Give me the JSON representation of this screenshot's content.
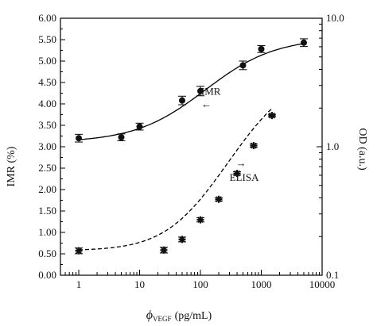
{
  "chart_data": {
    "type": "scatter",
    "xlabel": "ϕ",
    "xlabel_sub": "VEGF",
    "xlabel_unit": "(pg/mL)",
    "x_scale": "log",
    "xlim": [
      0.5,
      10000
    ],
    "x_ticks": [
      1,
      10,
      100,
      1000,
      10000
    ],
    "x_tick_labels": [
      "1",
      "10",
      "100",
      "1000",
      "10000"
    ],
    "ylabel_left": "IMR (%)",
    "ylim_left": [
      0,
      6
    ],
    "y_ticks_left": [
      "0.00",
      "0.50",
      "1.00",
      "1.50",
      "2.00",
      "2.50",
      "3.00",
      "3.50",
      "4.00",
      "4.50",
      "5.00",
      "5.50",
      "6.00"
    ],
    "ylabel_right": "OD (a.u.)",
    "y_scale_right": "log",
    "ylim_right": [
      0.1,
      10
    ],
    "y_ticks_right": [
      "0.1",
      "1.0",
      "10.0"
    ],
    "series": [
      {
        "name": "IMR",
        "axis": "left",
        "marker": "circle",
        "x": [
          1,
          5,
          10,
          50,
          100,
          500,
          1000,
          5000
        ],
        "y": [
          3.2,
          3.22,
          3.47,
          4.08,
          4.3,
          4.9,
          5.28,
          5.43
        ],
        "err": [
          0.09,
          0.08,
          0.08,
          0.1,
          0.11,
          0.1,
          0.08,
          0.09
        ],
        "fit": {
          "kind": "sigmoid",
          "style": "solid",
          "x_range": [
            1,
            5000
          ],
          "bottom": 3.1,
          "top": 5.55,
          "ec50": 120,
          "hill": 0.75
        }
      },
      {
        "name": "ELISA",
        "axis": "right",
        "marker": "star",
        "x": [
          1,
          25,
          50,
          100,
          200,
          400,
          750,
          1500
        ],
        "y": [
          0.155,
          0.157,
          0.19,
          0.27,
          0.39,
          0.62,
          1.02,
          1.75
        ],
        "err": [
          0.008,
          0.008,
          0.008,
          0.01,
          0.012,
          0.02,
          0.03,
          0.04
        ],
        "fit": {
          "kind": "sigmoid",
          "style": "dashed",
          "x_range": [
            1,
            1500
          ],
          "bottom": 0.155,
          "ec50": 1400,
          "hill": 1.0,
          "top": 3.7
        }
      }
    ],
    "annotations": [
      {
        "text": "IMR",
        "arrow": "←",
        "at_x": 150,
        "at_y_left": 4.1
      },
      {
        "text": "ELISA",
        "arrow": "→",
        "at_x": 800,
        "at_y_left": 2.35
      }
    ],
    "grid": false,
    "legend": "none"
  }
}
